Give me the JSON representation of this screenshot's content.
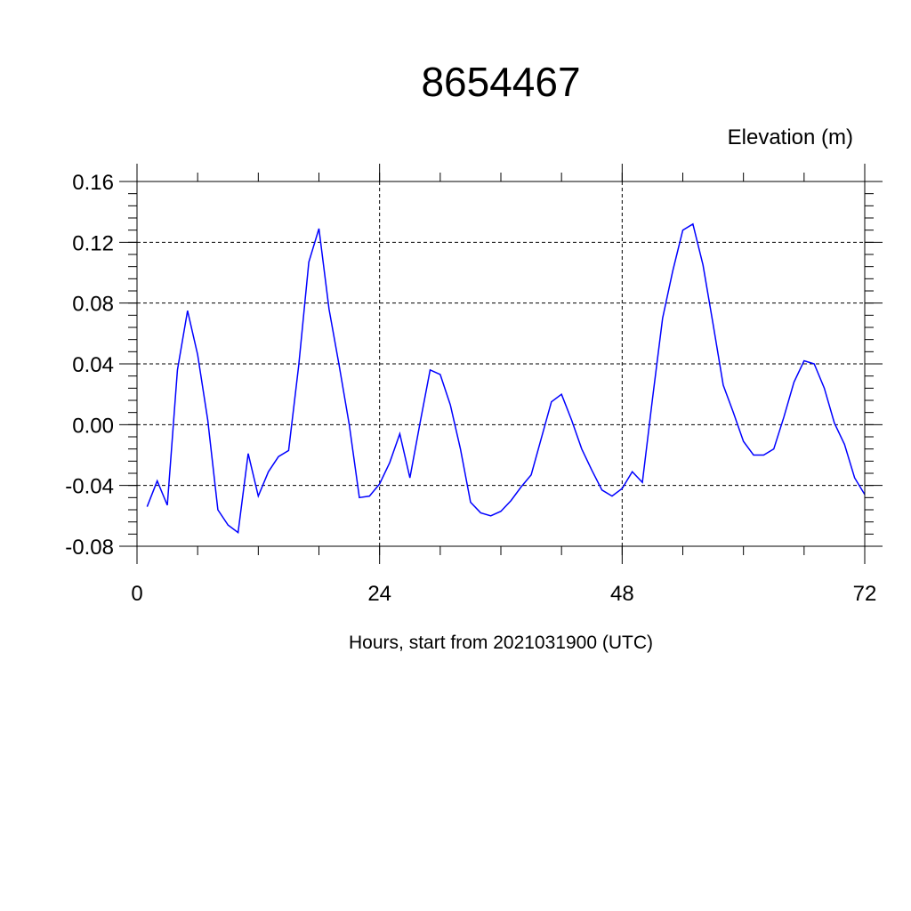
{
  "chart_data": {
    "type": "line",
    "title": "8654467",
    "ylabel": "Elevation (m)",
    "xlabel": "Hours, start from 2021031900 (UTC)",
    "xlim": [
      0,
      72
    ],
    "ylim": [
      -0.08,
      0.16
    ],
    "xticks": [
      0,
      24,
      48,
      72
    ],
    "xtick_labels": [
      "0",
      "24",
      "48",
      "72"
    ],
    "yticks": [
      -0.08,
      -0.04,
      0.0,
      0.04,
      0.08,
      0.12,
      0.16
    ],
    "ytick_labels": [
      "-0.08",
      "-0.04",
      "0.00",
      "0.04",
      "0.08",
      "0.12",
      "0.16"
    ],
    "grid": true,
    "colors": {
      "series": "#0000ff",
      "axis": "#000000"
    },
    "series": [
      {
        "x": [
          1,
          2,
          3,
          4,
          5,
          6,
          7,
          8,
          9,
          10,
          11,
          12,
          13,
          14,
          15,
          16,
          17,
          18,
          19,
          20,
          21,
          22,
          23,
          24,
          25,
          26,
          27,
          28,
          29,
          30,
          31,
          32,
          33,
          34,
          35,
          36,
          37,
          38,
          39,
          40,
          41,
          42,
          43,
          44,
          45,
          46,
          47,
          48,
          49,
          50,
          51,
          52,
          53,
          54,
          55,
          56,
          57,
          58,
          59,
          60,
          61,
          62,
          63,
          64,
          65,
          66,
          67,
          68,
          69,
          70,
          71,
          72
        ],
        "values": [
          -0.054,
          -0.037,
          -0.053,
          0.036,
          0.075,
          0.046,
          0.003,
          -0.056,
          -0.066,
          -0.071,
          -0.019,
          -0.047,
          -0.031,
          -0.021,
          -0.017,
          0.039,
          0.107,
          0.129,
          0.076,
          0.039,
          0.0,
          -0.048,
          -0.047,
          -0.039,
          -0.025,
          -0.006,
          -0.035,
          0.001,
          0.036,
          0.033,
          0.013,
          -0.016,
          -0.051,
          -0.058,
          -0.06,
          -0.057,
          -0.05,
          -0.041,
          -0.033,
          -0.009,
          0.015,
          0.02,
          0.003,
          -0.016,
          -0.03,
          -0.043,
          -0.047,
          -0.042,
          -0.031,
          -0.038,
          0.017,
          0.07,
          0.101,
          0.128,
          0.132,
          0.105,
          0.066,
          0.026,
          0.008,
          -0.011,
          -0.02,
          -0.02,
          -0.016,
          0.005,
          0.028,
          0.042,
          0.04,
          0.024,
          0.001,
          -0.013,
          -0.035,
          -0.046
        ]
      }
    ]
  }
}
